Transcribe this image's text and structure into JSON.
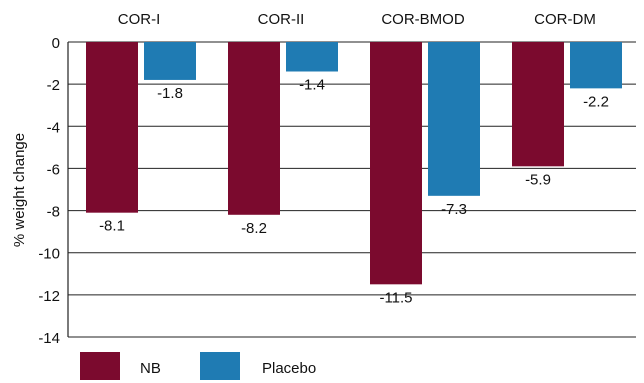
{
  "chart_data": {
    "type": "bar",
    "title": "",
    "xlabel": "",
    "ylabel": "% weight change",
    "categories": [
      "COR-I",
      "COR-II",
      "COR-BMOD",
      "COR-DM"
    ],
    "series": [
      {
        "name": "NB",
        "color": "#7b0a2e",
        "values": [
          -8.1,
          -8.2,
          -11.5,
          -5.9
        ]
      },
      {
        "name": "Placebo",
        "color": "#1f7bb3",
        "values": [
          -1.8,
          -1.4,
          -7.3,
          -2.2
        ]
      }
    ],
    "ylim": [
      -14,
      0
    ],
    "yticks": [
      0,
      -2,
      -4,
      -6,
      -8,
      -10,
      -12,
      -14
    ],
    "grid": true,
    "legend": "bottom-left",
    "category_labels_position": "top"
  }
}
